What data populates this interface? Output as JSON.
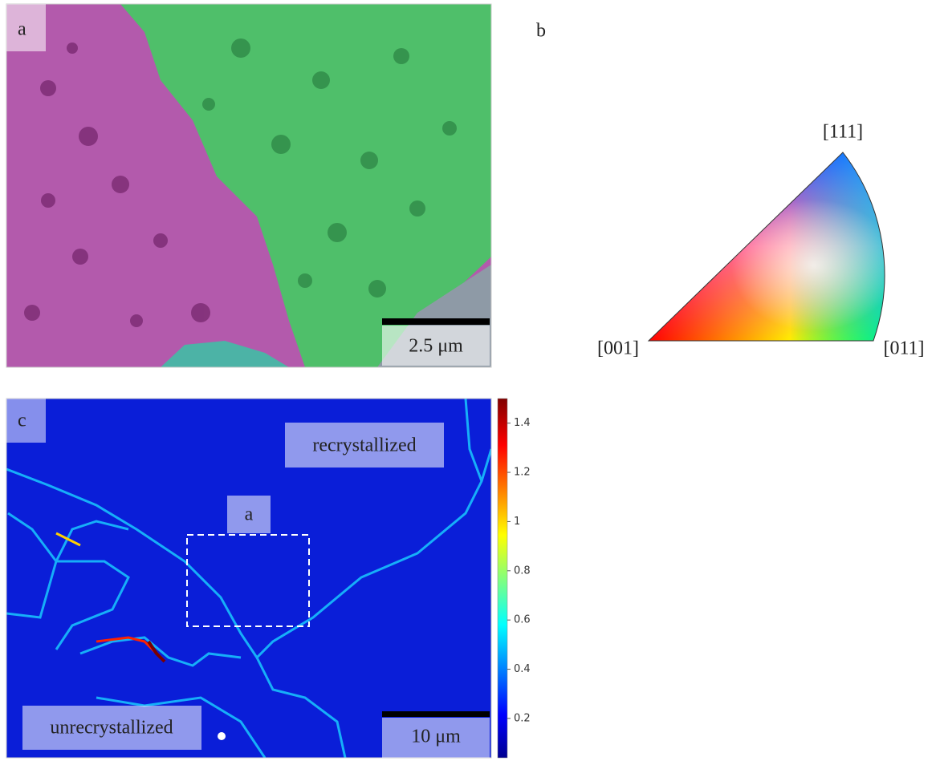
{
  "panel_a": {
    "label": "a",
    "scale_bar": "2.5 μm"
  },
  "panel_b": {
    "label": "b",
    "corners": {
      "top": "[111]",
      "left": "[001]",
      "right": "[011]"
    }
  },
  "panel_c": {
    "label": "c",
    "region_top": "recrystallized",
    "region_bottom": "unrecrystallized",
    "inset_label": "a",
    "scale_bar": "10 μm",
    "colorbar": {
      "lim": [
        0.04,
        1.5
      ],
      "ticks": [
        0.2,
        0.4,
        0.6,
        0.8,
        1,
        1.2,
        1.4
      ]
    }
  }
}
